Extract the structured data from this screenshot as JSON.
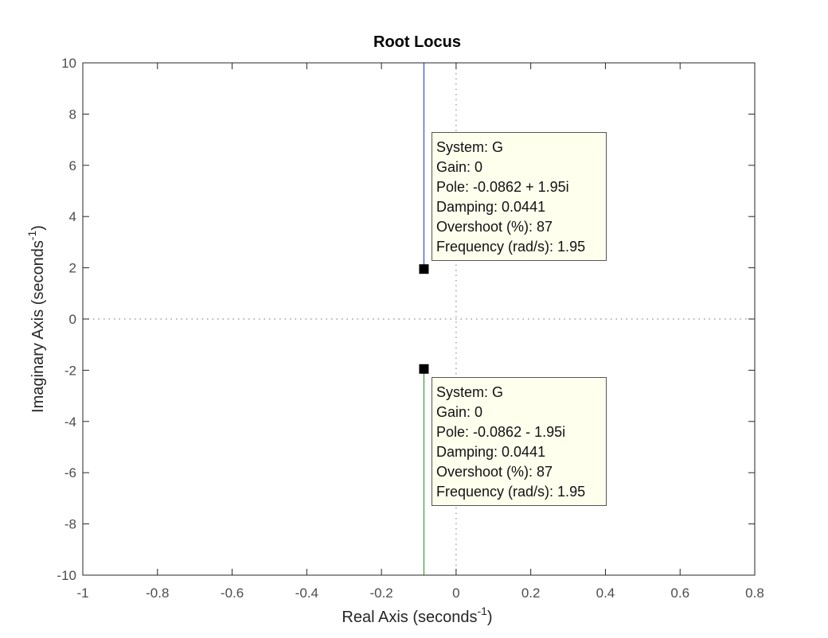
{
  "chart_data": {
    "type": "scatter",
    "title": "Root Locus",
    "xlabel": "Real Axis (seconds",
    "ylabel": "Imaginary Axis (seconds",
    "axis_unit_exponent": "-1",
    "axis_label_suffix": ")",
    "xlim": [
      -1,
      0.8
    ],
    "ylim": [
      -10,
      10
    ],
    "xticks": [
      "-1",
      "-0.8",
      "-0.6",
      "-0.4",
      "-0.2",
      "0",
      "0.2",
      "0.4",
      "0.6",
      "0.8"
    ],
    "yticks": [
      "10",
      "8",
      "6",
      "4",
      "2",
      "0",
      "-2",
      "-4",
      "-6",
      "-8",
      "-10"
    ],
    "grid": false,
    "zero_lines": "dotted",
    "series": [
      {
        "color": "#1f2ee6",
        "x": [
          -0.0862,
          -0.0862
        ],
        "y": [
          1.95,
          10
        ]
      },
      {
        "color": "#1f8f1f",
        "x": [
          -0.0862,
          -0.0862
        ],
        "y": [
          -1.95,
          -10
        ]
      }
    ],
    "poles": [
      {
        "x": -0.0862,
        "y": 1.95
      },
      {
        "x": -0.0862,
        "y": -1.95
      }
    ],
    "datatips": [
      {
        "system": "System: G",
        "gain": "Gain: 0",
        "pole": "Pole: -0.0862 + 1.95i",
        "damping": "Damping: 0.0441",
        "overshoot": "Overshoot (%): 87",
        "frequency": "Frequency (rad/s): 1.95"
      },
      {
        "system": "System: G",
        "gain": "Gain: 0",
        "pole": "Pole: -0.0862 - 1.95i",
        "damping": "Damping: 0.0441",
        "overshoot": "Overshoot (%): 87",
        "frequency": "Frequency (rad/s): 1.95"
      }
    ]
  }
}
